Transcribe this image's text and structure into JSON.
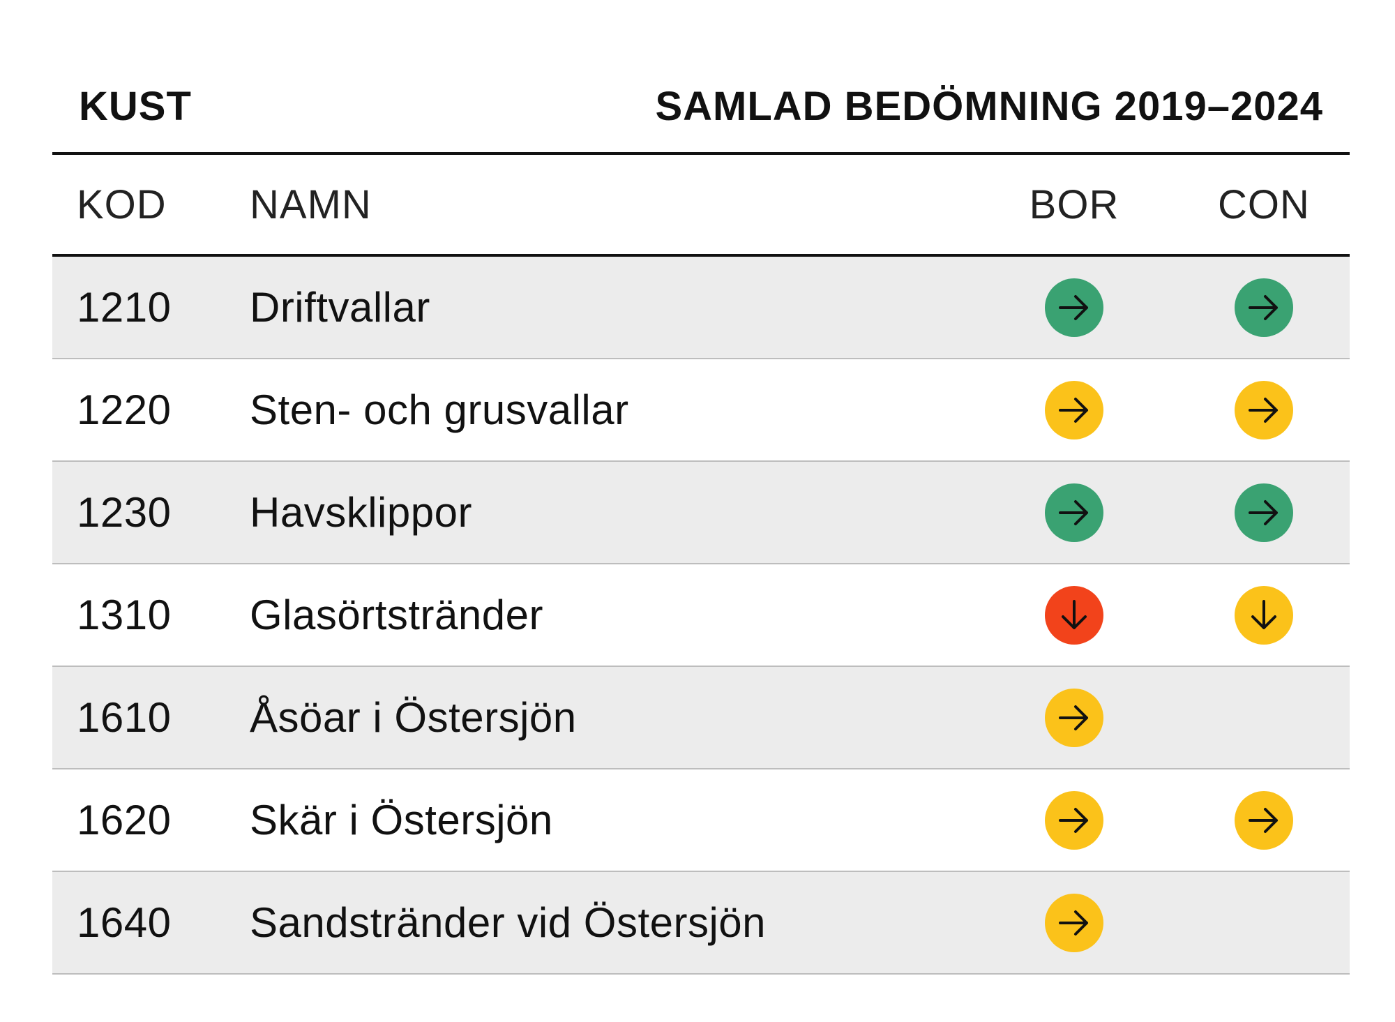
{
  "title": {
    "left": "KUST",
    "right": "SAMLAD BEDÖMNING 2019–2024"
  },
  "headers": {
    "kod": "KOD",
    "namn": "NAMN",
    "bor": "BOR",
    "con": "CON"
  },
  "colors": {
    "green": "#3aa272",
    "yellow": "#fbc21a",
    "red": "#f2431b",
    "arrow": "#111111"
  },
  "rows": [
    {
      "kod": "1210",
      "namn": "Driftvallar",
      "bor": {
        "color": "green",
        "icon": "arrow-right-icon"
      },
      "con": {
        "color": "green",
        "icon": "arrow-right-icon"
      }
    },
    {
      "kod": "1220",
      "namn": "Sten- och grusvallar",
      "bor": {
        "color": "yellow",
        "icon": "arrow-right-icon"
      },
      "con": {
        "color": "yellow",
        "icon": "arrow-right-icon"
      }
    },
    {
      "kod": "1230",
      "namn": "Havsklippor",
      "bor": {
        "color": "green",
        "icon": "arrow-right-icon"
      },
      "con": {
        "color": "green",
        "icon": "arrow-right-icon"
      }
    },
    {
      "kod": "1310",
      "namn": "Glasörtstränder",
      "bor": {
        "color": "red",
        "icon": "arrow-down-icon"
      },
      "con": {
        "color": "yellow",
        "icon": "arrow-down-icon"
      }
    },
    {
      "kod": "1610",
      "namn": "Åsöar i Östersjön",
      "bor": {
        "color": "yellow",
        "icon": "arrow-right-icon"
      },
      "con": null
    },
    {
      "kod": "1620",
      "namn": "Skär i Östersjön",
      "bor": {
        "color": "yellow",
        "icon": "arrow-right-icon"
      },
      "con": {
        "color": "yellow",
        "icon": "arrow-right-icon"
      }
    },
    {
      "kod": "1640",
      "namn": "Sandstränder vid Östersjön",
      "bor": {
        "color": "yellow",
        "icon": "arrow-right-icon"
      },
      "con": null
    }
  ]
}
